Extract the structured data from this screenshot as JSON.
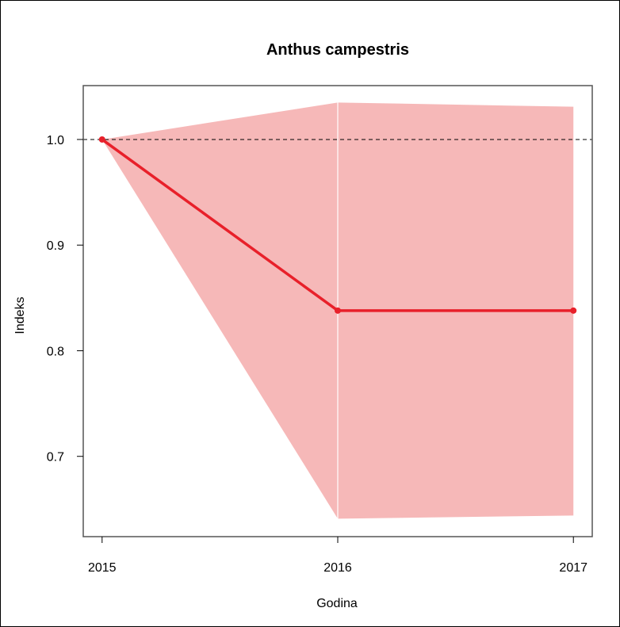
{
  "chart_data": {
    "type": "line",
    "title": "Anthus campestris",
    "xlabel": "Godina",
    "ylabel": "Indeks",
    "x": [
      2015,
      2016,
      2017
    ],
    "x_tick_labels": [
      "2015",
      "2016",
      "2017"
    ],
    "y_ticks": [
      0.7,
      0.8,
      0.9,
      1.0
    ],
    "y_tick_labels": [
      "0.7",
      "0.8",
      "0.9",
      "1.0"
    ],
    "xlim": [
      2014.92,
      2017.08
    ],
    "ylim": [
      0.624,
      1.051
    ],
    "series": [
      {
        "values": [
          1.0,
          0.838,
          0.838
        ],
        "color": "#e8202a"
      }
    ],
    "confidence_band": {
      "lower": [
        1.0,
        0.641,
        0.644
      ],
      "upper": [
        1.0,
        1.035,
        1.031
      ],
      "color": "#f6b8b8"
    },
    "reference_line": {
      "y": 1.0,
      "style": "dashed",
      "color": "#000000"
    },
    "vertical_lines_at": [
      2016
    ],
    "grid": false,
    "legend": "none"
  }
}
